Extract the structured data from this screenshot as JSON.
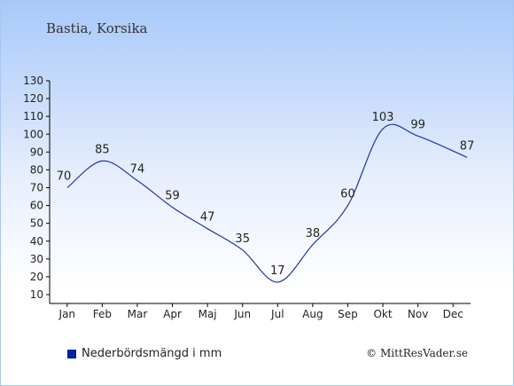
{
  "header": {
    "title": "Bastia, Korsika"
  },
  "legend": {
    "label": "Nederbördsmängd i mm",
    "color": "#0b1ea8"
  },
  "footer": {
    "copyright": "© MittResVader.se"
  },
  "colors": {
    "line": "#2233aa",
    "axis": "#000000"
  },
  "chart_data": {
    "type": "line",
    "title": "Bastia, Korsika",
    "xlabel": "",
    "ylabel": "",
    "categories": [
      "Jan",
      "Feb",
      "Mar",
      "Apr",
      "Maj",
      "Jun",
      "Jul",
      "Aug",
      "Sep",
      "Okt",
      "Nov",
      "Dec"
    ],
    "series": [
      {
        "name": "Nederbördsmängd i mm",
        "values": [
          70,
          85,
          74,
          59,
          47,
          35,
          17,
          38,
          60,
          103,
          99,
          87
        ]
      }
    ],
    "yticks": [
      10,
      20,
      30,
      40,
      50,
      60,
      70,
      80,
      90,
      100,
      110,
      120,
      130
    ],
    "ylim": [
      10,
      130
    ],
    "grid": false,
    "legend_position": "bottom-left",
    "data_labels": true
  }
}
